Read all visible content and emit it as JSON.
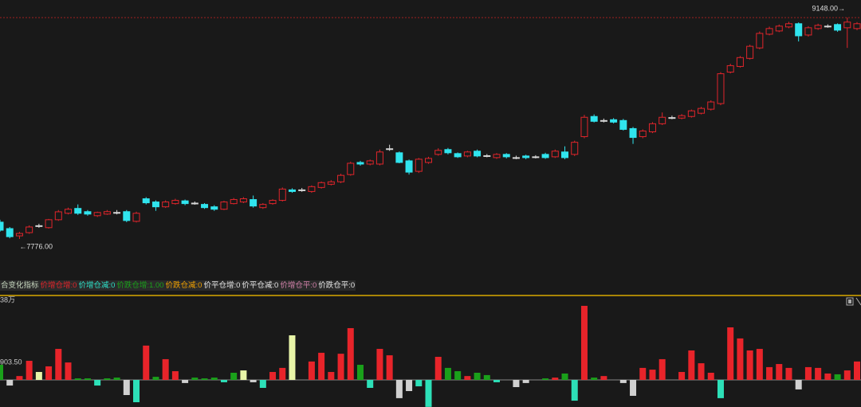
{
  "chart_data": [
    {
      "type": "candlestick",
      "open": [
        7880,
        7840,
        7795,
        7815,
        7858,
        7846,
        7895,
        7935,
        7965,
        7945,
        7920,
        7930,
        7940,
        7945,
        7885,
        8025,
        8005,
        7975,
        7995,
        8012,
        7998,
        7990,
        7975,
        7960,
        7995,
        8005,
        8020,
        7970,
        7995,
        8015,
        8080,
        8080,
        8070,
        8095,
        8115,
        8130,
        8175,
        8250,
        8240,
        8240,
        8335,
        8310,
        8260,
        8195,
        8250,
        8300,
        8330,
        8305,
        8290,
        8320,
        8292,
        8280,
        8300,
        8280,
        8290,
        8285,
        8300,
        8285,
        8315,
        8300,
        8410,
        8535,
        8510,
        8515,
        8510,
        8460,
        8410,
        8440,
        8490,
        8528,
        8525,
        8535,
        8555,
        8580,
        8615,
        8810,
        8845,
        8895,
        8960,
        9045,
        9065,
        9090,
        9110,
        9040,
        9080,
        9095,
        9105,
        9085,
        9080
      ],
      "close": [
        7830,
        7790,
        7810,
        7850,
        7858,
        7895,
        7944,
        7960,
        7935,
        7930,
        7940,
        7945,
        7940,
        7890,
        7935,
        8000,
        7975,
        8005,
        8015,
        7995,
        7998,
        7970,
        7960,
        8005,
        8020,
        8025,
        7980,
        7990,
        8015,
        8085,
        8070,
        8080,
        8100,
        8125,
        8130,
        8170,
        8245,
        8240,
        8260,
        8315,
        8335,
        8250,
        8190,
        8270,
        8275,
        8325,
        8310,
        8285,
        8315,
        8290,
        8292,
        8300,
        8285,
        8280,
        8280,
        8285,
        8280,
        8320,
        8280,
        8375,
        8530,
        8505,
        8510,
        8500,
        8455,
        8405,
        8445,
        8490,
        8530,
        8528,
        8540,
        8570,
        8585,
        8625,
        8800,
        8850,
        8900,
        8970,
        9050,
        9080,
        9095,
        9110,
        9035,
        9085,
        9100,
        9095,
        9070,
        9120,
        9110
      ],
      "high": [
        7895,
        7850,
        7820,
        7860,
        7870,
        7900,
        7955,
        7970,
        7990,
        7955,
        7945,
        7955,
        7955,
        7955,
        7945,
        8035,
        8015,
        8015,
        8025,
        8020,
        8008,
        7998,
        7985,
        8012,
        8030,
        8035,
        8045,
        7998,
        8022,
        8095,
        8090,
        8092,
        8108,
        8132,
        8140,
        8180,
        8255,
        8260,
        8268,
        8330,
        8360,
        8318,
        8268,
        8278,
        8285,
        8338,
        8340,
        8312,
        8322,
        8330,
        8302,
        8308,
        8308,
        8292,
        8298,
        8295,
        8310,
        8330,
        8350,
        8385,
        8545,
        8548,
        8522,
        8525,
        8520,
        8470,
        8455,
        8500,
        8560,
        8540,
        8550,
        8578,
        8595,
        8635,
        8810,
        8862,
        8910,
        8980,
        9062,
        9092,
        9105,
        9122,
        9118,
        9095,
        9110,
        9106,
        9112,
        9148,
        9120
      ],
      "low": [
        7820,
        7780,
        7776,
        7808,
        7845,
        7840,
        7888,
        7928,
        7925,
        7920,
        7912,
        7925,
        7928,
        7880,
        7878,
        7990,
        7950,
        7968,
        7988,
        7985,
        7988,
        7962,
        7950,
        7955,
        7990,
        7998,
        7970,
        7962,
        7988,
        8008,
        8062,
        8068,
        8062,
        8088,
        8108,
        8122,
        8168,
        8230,
        8232,
        8232,
        8322,
        8245,
        8175,
        8185,
        8242,
        8292,
        8300,
        8278,
        8282,
        8282,
        8282,
        8272,
        8275,
        8270,
        8270,
        8275,
        8272,
        8278,
        8270,
        8290,
        8400,
        8498,
        8498,
        8492,
        8448,
        8365,
        8400,
        8432,
        8482,
        8518,
        8518,
        8528,
        8548,
        8572,
        8605,
        8802,
        8838,
        8888,
        8952,
        9038,
        9058,
        9082,
        9000,
        9030,
        9072,
        9085,
        9060,
        8960,
        9070
      ],
      "up_color": "#e0252b",
      "down_color": "#30e4ee",
      "flat_color": "#d8d8d8",
      "ylim": [
        7529,
        9257
      ],
      "high_label": "9148.00→",
      "low_label": "←7776.00"
    },
    {
      "type": "bar",
      "title": "合变化指标",
      "legend": [
        {
          "label": "价增仓增:0",
          "color": "#e0252b"
        },
        {
          "label": "价增仓减:0",
          "color": "#2de0c8"
        },
        {
          "label": "价跌仓增:1.00",
          "color": "#1aa01a"
        },
        {
          "label": "价跌仓减:0",
          "color": "#f0a000"
        },
        {
          "label": "价平仓增:0",
          "color": "#e6e6e6"
        },
        {
          "label": "价平仓减:0",
          "color": "#e6e6e6"
        },
        {
          "label": "价增仓平:0",
          "color": "#d080a8"
        },
        {
          "label": "价跌仓平:0",
          "color": "#e6e6e6"
        }
      ],
      "unit_label": "38万",
      "values": [
        780,
        -290,
        200,
        985,
        410,
        700,
        1600,
        900,
        80,
        80,
        -290,
        80,
        120,
        -780,
        -1150,
        1770,
        160,
        1070,
        450,
        -160,
        120,
        80,
        120,
        -120,
        370,
        490,
        -120,
        -410,
        410,
        620,
        2300,
        null,
        950,
        1400,
        410,
        1350,
        2670,
        780,
        -410,
        1600,
        1270,
        -940,
        -575,
        -330,
        -1390,
        1190,
        620,
        450,
        200,
        370,
        250,
        -120,
        null,
        -370,
        -160,
        null,
        80,
        120,
        330,
        -1070,
        3820,
        120,
        200,
        null,
        -160,
        -820,
        620,
        530,
        1070,
        null,
        410,
        1520,
        860,
        370,
        -940,
        2710,
        2140,
        1520,
        1600,
        660,
        820,
        620,
        -490,
        660,
        620,
        330,
        290,
        490,
        950
      ],
      "colors": [
        "#1aa01a",
        "#d0d0d0",
        "#e8242a",
        "#e8242a",
        "#e8f5a8",
        "#e8242a",
        "#e8242a",
        "#e8242a",
        "#1aa01a",
        "#1aa01a",
        "#2de0b8",
        "#1aa01a",
        "#1aa01a",
        "#d0d0d0",
        "#2de0b8",
        "#e8242a",
        "#1aa01a",
        "#e8242a",
        "#e8242a",
        "#d0d0d0",
        "#1aa01a",
        "#1aa01a",
        "#1aa01a",
        "#2de0b8",
        "#1aa01a",
        "#e8f5a8",
        "#d0d0d0",
        "#2de0b8",
        "#e8242a",
        "#e8242a",
        "#e8f5a8",
        null,
        "#e8242a",
        "#e8242a",
        "#e8242a",
        "#e8242a",
        "#e8242a",
        "#1aa01a",
        "#2de0b8",
        "#e8242a",
        "#e8242a",
        "#d0d0d0",
        "#d0d0d0",
        "#2de0b8",
        "#2de0b8",
        "#e8242a",
        "#1aa01a",
        "#1aa01a",
        "#e8242a",
        "#1aa01a",
        "#1aa01a",
        "#2de0b8",
        null,
        "#d0d0d0",
        "#d0d0d0",
        null,
        "#1aa01a",
        "#e8242a",
        "#1aa01a",
        "#2de0b8",
        "#e8242a",
        "#1aa01a",
        "#e8242a",
        null,
        "#d0d0d0",
        "#d0d0d0",
        "#e8242a",
        "#e8242a",
        "#e8242a",
        null,
        "#e8242a",
        "#e8242a",
        "#e8242a",
        "#e8242a",
        "#2de0b8",
        "#e8242a",
        "#e8242a",
        "#e8242a",
        "#e8242a",
        "#e8242a",
        "#e8242a",
        "#e8242a",
        "#d0d0d0",
        "#e8242a",
        "#e8242a",
        "#e8242a",
        "#1aa01a",
        "#e8242a",
        "#e8242a"
      ],
      "ylim": [
        -1396,
        4271
      ],
      "yticks": [
        {
          "value": 903.5,
          "label": "903.50"
        }
      ]
    }
  ]
}
